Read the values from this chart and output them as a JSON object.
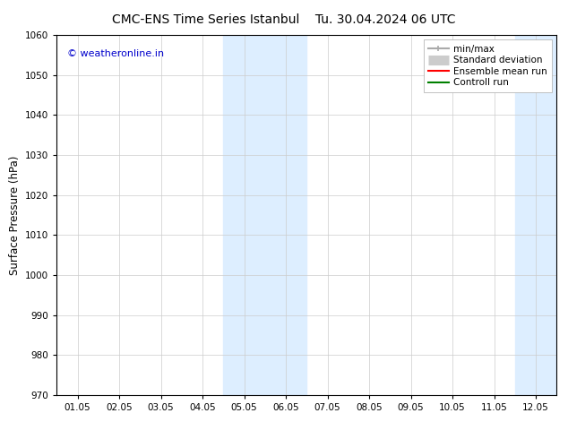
{
  "title_left": "CMC-ENS Time Series Istanbul",
  "title_right": "Tu. 30.04.2024 06 UTC",
  "ylabel": "Surface Pressure (hPa)",
  "xlabel": "",
  "ylim": [
    970,
    1060
  ],
  "yticks": [
    970,
    980,
    990,
    1000,
    1010,
    1020,
    1030,
    1040,
    1050,
    1060
  ],
  "xtick_labels": [
    "01.05",
    "02.05",
    "03.05",
    "04.05",
    "05.05",
    "06.05",
    "07.05",
    "08.05",
    "09.05",
    "10.05",
    "11.05",
    "12.05"
  ],
  "xtick_positions": [
    0,
    1,
    2,
    3,
    4,
    5,
    6,
    7,
    8,
    9,
    10,
    11
  ],
  "xlim": [
    -0.5,
    11.5
  ],
  "shaded_regions": [
    {
      "x_start": 3.5,
      "x_end": 5.5,
      "color": "#ddeeff"
    },
    {
      "x_start": 10.5,
      "x_end": 11.5,
      "color": "#ddeeff"
    }
  ],
  "watermark_text": "© weatheronline.in",
  "watermark_color": "#0000cc",
  "watermark_fontsize": 8,
  "legend_items": [
    {
      "label": "min/max",
      "color": "#aaaaaa",
      "lw": 1.5,
      "ls": "-",
      "type": "line_caps"
    },
    {
      "label": "Standard deviation",
      "color": "#cccccc",
      "lw": 8,
      "ls": "-",
      "type": "thick_line"
    },
    {
      "label": "Ensemble mean run",
      "color": "red",
      "lw": 1.5,
      "ls": "-",
      "type": "line"
    },
    {
      "label": "Controll run",
      "color": "green",
      "lw": 1.5,
      "ls": "-",
      "type": "line"
    }
  ],
  "title_fontsize": 10,
  "tick_fontsize": 7.5,
  "ylabel_fontsize": 8.5,
  "bg_color": "#ffffff",
  "plot_bg_color": "#ffffff",
  "grid_color": "#cccccc",
  "grid_lw": 0.5,
  "tick_color": "#000000",
  "legend_fontsize": 7.5
}
